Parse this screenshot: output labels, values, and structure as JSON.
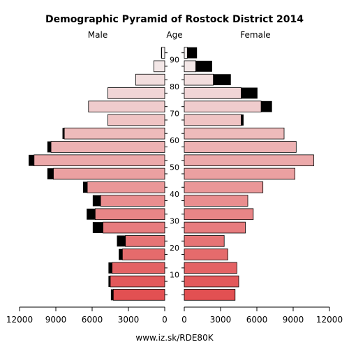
{
  "chart_data": {
    "type": "bar",
    "title": "Demographic Pyramid of Rostock District 2014",
    "male_label": "Male",
    "age_label": "Age",
    "female_label": "Female",
    "footer": "www.iz.sk/RDE80K",
    "x_max": 12000,
    "x_ticks": [
      12000,
      9000,
      6000,
      3000,
      0
    ],
    "age_ticks": [
      10,
      20,
      30,
      40,
      50,
      60,
      70,
      80,
      90
    ],
    "age_groups": [
      "0-4",
      "5-9",
      "10-14",
      "15-19",
      "20-24",
      "25-29",
      "30-34",
      "35-39",
      "40-44",
      "45-49",
      "50-54",
      "55-59",
      "60-64",
      "65-69",
      "70-74",
      "75-79",
      "80-84",
      "85-89",
      "90+"
    ],
    "series": [
      {
        "name": "Male",
        "base": [
          4250,
          4500,
          4350,
          3500,
          3250,
          5100,
          5750,
          5300,
          6400,
          9200,
          10800,
          9400,
          8300,
          4700,
          6300,
          4700,
          2400,
          900,
          250
        ],
        "excess": [
          200,
          150,
          300,
          300,
          700,
          850,
          700,
          650,
          350,
          500,
          450,
          300,
          150,
          0,
          0,
          0,
          0,
          0,
          50
        ]
      },
      {
        "name": "Female",
        "base": [
          4200,
          4500,
          4350,
          3600,
          3300,
          5050,
          5700,
          5250,
          6500,
          9150,
          10700,
          9250,
          8250,
          4700,
          6350,
          4700,
          2400,
          950,
          250
        ],
        "excess": [
          0,
          0,
          0,
          0,
          0,
          0,
          0,
          0,
          0,
          0,
          0,
          0,
          0,
          200,
          900,
          1350,
          1450,
          1350,
          800
        ]
      }
    ]
  }
}
